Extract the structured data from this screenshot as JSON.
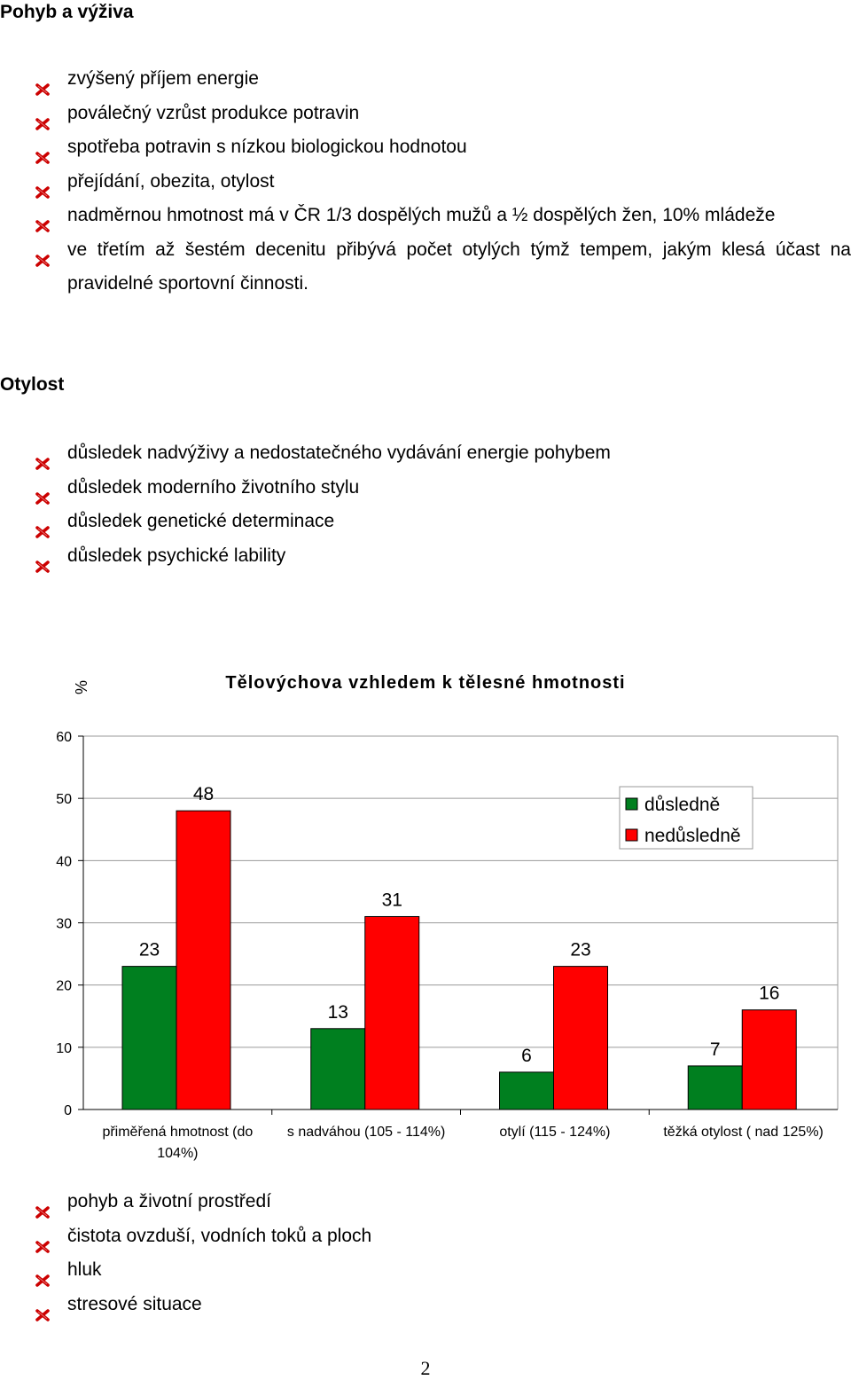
{
  "section1": {
    "title": "Pohyb a výživa",
    "items": [
      "zvýšený příjem energie",
      "poválečný vzrůst produkce potravin",
      "spotřeba potravin s nízkou biologickou hodnotou",
      "přejídání, obezita, otylost",
      "nadměrnou hmotnost má v ČR 1/3 dospělých mužů a ½ dospělých žen, 10% mládeže",
      "ve třetím až šestém decenitu přibývá počet otylých týmž tempem, jakým klesá účast na pravidelné sportovní činnosti."
    ]
  },
  "section2": {
    "title": "Otylost",
    "items": [
      "důsledek nadvýživy a nedostatečného vydávání energie pohybem",
      "důsledek moderního životního stylu",
      "důsledek genetické determinace",
      "důsledek psychické lability"
    ]
  },
  "chart_data": {
    "type": "bar",
    "title": "Tělovýchova vzhledem k tělesné hmotnosti",
    "ylabel": "%",
    "ylim": [
      0,
      60
    ],
    "yticks": [
      0,
      10,
      20,
      30,
      40,
      50,
      60
    ],
    "grid": true,
    "legend": "top-right",
    "categories": [
      "přiměřená hmotnost (do 104%)",
      "s nadváhou (105 - 114%)",
      "otylí  (115 - 124%)",
      "těžká otylost ( nad 125%)"
    ],
    "series": [
      {
        "name": "důsledně",
        "color": "#007f1f",
        "values": [
          23,
          13,
          6,
          7
        ]
      },
      {
        "name": "nedůsledně",
        "color": "#ff0000",
        "values": [
          48,
          31,
          23,
          16
        ]
      }
    ]
  },
  "section3": {
    "items": [
      "pohyb a životní prostředí",
      "čistota ovzduší, vodních toků a ploch",
      "hluk",
      "stresové situace"
    ]
  },
  "page_number": "2",
  "icons": {
    "bullet": "red-x-bullet-icon"
  },
  "colors": {
    "bullet": "#cc0000"
  }
}
